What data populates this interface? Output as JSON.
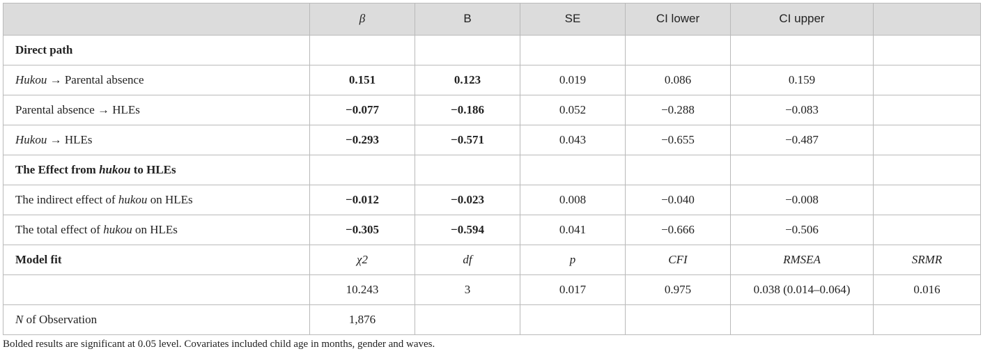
{
  "table": {
    "header": {
      "label": "",
      "beta": "β",
      "B": "B",
      "SE": "SE",
      "ci_lower": "CI lower",
      "ci_upper": "CI upper",
      "extra": ""
    },
    "direct_path": {
      "title": "Direct path",
      "rows": [
        {
          "pre": "Hukou",
          "label": " → Parental absence",
          "beta": "0.151",
          "B": "0.123",
          "SE": "0.019",
          "ci_lower": "0.086",
          "ci_upper": "0.159"
        },
        {
          "pre": "",
          "label": "Parental absence → HLEs",
          "beta": "−0.077",
          "B": "−0.186",
          "SE": "0.052",
          "ci_lower": "−0.288",
          "ci_upper": "−0.083"
        },
        {
          "pre": "Hukou",
          "label": " → HLEs",
          "beta": "−0.293",
          "B": "−0.571",
          "SE": "0.043",
          "ci_lower": "−0.655",
          "ci_upper": "−0.487"
        }
      ]
    },
    "effect": {
      "title_pre": "The Effect from ",
      "title_em": "hukou",
      "title_post": " to HLEs",
      "rows": [
        {
          "pre": "The indirect effect of ",
          "em": "hukou",
          "post": " on HLEs",
          "beta": "−0.012",
          "B": "−0.023",
          "SE": "0.008",
          "ci_lower": "−0.040",
          "ci_upper": "−0.008"
        },
        {
          "pre": "The total effect of ",
          "em": "hukou",
          "post": " on HLEs",
          "beta": "−0.305",
          "B": "−0.594",
          "SE": "0.041",
          "ci_lower": "−0.666",
          "ci_upper": "−0.506"
        }
      ]
    },
    "model_fit": {
      "title": "Model fit",
      "labels": {
        "chi2": "χ2",
        "df": "df",
        "p": "p",
        "cfi": "CFI",
        "rmsea": "RMSEA",
        "srmr": "SRMR"
      },
      "values": {
        "chi2": "10.243",
        "df": "3",
        "p": "0.017",
        "cfi": "0.975",
        "rmsea": "0.038 (0.014–0.064)",
        "srmr": "0.016"
      }
    },
    "observations": {
      "label_em": "N",
      "label_post": " of Observation",
      "value": "1,876"
    }
  },
  "note": "Bolded results are significant at 0.05 level. Covariates included child age in months, gender and waves."
}
